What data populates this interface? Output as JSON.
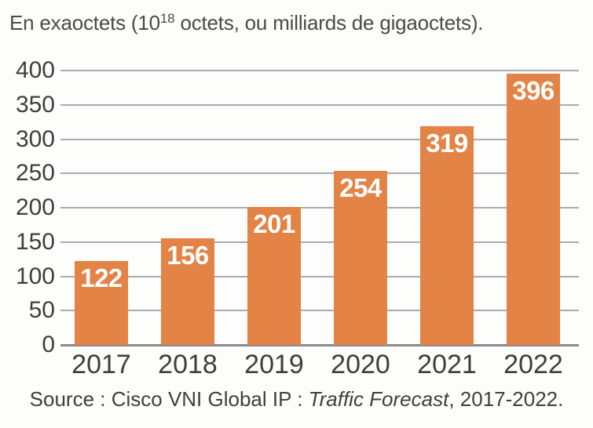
{
  "page": {
    "title": {
      "prefix": "En exaoctets (10",
      "exponent": "18",
      "suffix": " octets, ou milliards de gigaoctets)."
    },
    "source": {
      "prefix": "Source : Cisco VNI Global IP : ",
      "italic": "Traffic Forecast",
      "suffix": ", 2017-2022."
    }
  },
  "chart_data": {
    "type": "bar",
    "title": "En exaoctets (10^18 octets, ou milliards de gigaoctets).",
    "categories": [
      "2017",
      "2018",
      "2019",
      "2020",
      "2021",
      "2022"
    ],
    "values": [
      122,
      156,
      201,
      254,
      319,
      396
    ],
    "yticks": [
      0,
      50,
      100,
      150,
      200,
      250,
      300,
      350,
      400
    ],
    "ylim": [
      0,
      400
    ],
    "xlabel": "",
    "ylabel": "",
    "grid": true,
    "legend_position": "none",
    "value_label_style": "white bold, inside top of bar",
    "source": "Source : Cisco VNI Global IP : Traffic Forecast, 2017-2022."
  },
  "colors": {
    "bar": "#e38345",
    "grid": "#9b9ba3",
    "axis": "#8a8a8a",
    "text": "#3e3e3e",
    "title_text": "#4a4a4a",
    "value_label": "#ffffff",
    "background": "#fdfdfb"
  }
}
